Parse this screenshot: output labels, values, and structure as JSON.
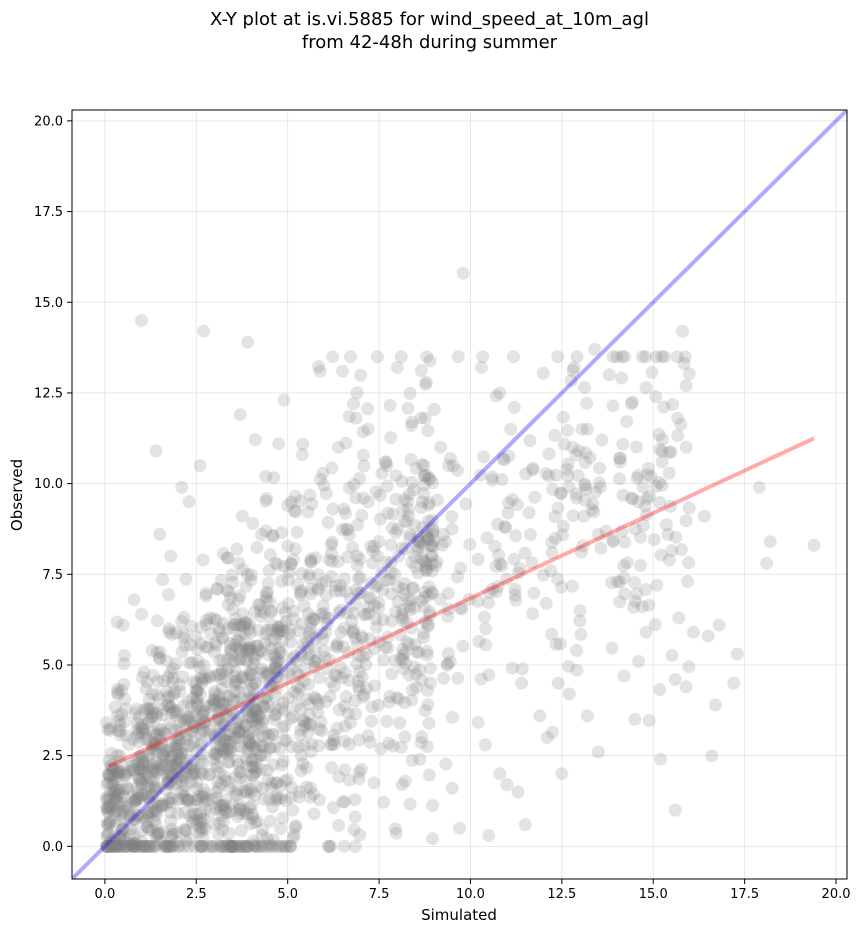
{
  "chart_data": {
    "type": "scatter",
    "title": "X-Y plot at is.vi.5885 for wind_speed_at_10m_agl\nfrom 42-48h during summer",
    "title_lines": [
      "X-Y plot at is.vi.5885 for wind_speed_at_10m_agl",
      "from 42-48h during summer"
    ],
    "xlabel": "Simulated",
    "ylabel": "Observed",
    "xlim": [
      -0.9,
      20.3
    ],
    "ylim": [
      -0.9,
      20.3
    ],
    "xticks": [
      0.0,
      2.5,
      5.0,
      7.5,
      10.0,
      12.5,
      15.0,
      17.5,
      20.0
    ],
    "yticks": [
      0.0,
      2.5,
      5.0,
      7.5,
      10.0,
      12.5,
      15.0,
      17.5,
      20.0
    ],
    "xtick_labels": [
      "0.0",
      "2.5",
      "5.0",
      "7.5",
      "10.0",
      "12.5",
      "15.0",
      "17.5",
      "20.0"
    ],
    "ytick_labels": [
      "0.0",
      "2.5",
      "5.0",
      "7.5",
      "10.0",
      "12.5",
      "15.0",
      "17.5",
      "20.0"
    ],
    "grid": true,
    "point_color": "#808080",
    "point_count_approx": 1900,
    "outlier_points": [
      [
        1.0,
        14.5
      ],
      [
        2.7,
        14.2
      ],
      [
        3.9,
        13.9
      ],
      [
        9.8,
        15.8
      ],
      [
        15.8,
        14.2
      ],
      [
        15.9,
        12.7
      ],
      [
        13.4,
        13.7
      ],
      [
        13.8,
        13.0
      ],
      [
        14.4,
        12.2
      ],
      [
        10.3,
        13.2
      ],
      [
        8.0,
        13.2
      ],
      [
        6.5,
        13.1
      ],
      [
        11.2,
        12.1
      ],
      [
        10.8,
        12.5
      ],
      [
        12.8,
        11.0
      ],
      [
        13.2,
        11.5
      ],
      [
        13.6,
        11.2
      ],
      [
        14.1,
        10.6
      ],
      [
        14.6,
        9.5
      ],
      [
        15.4,
        8.6
      ],
      [
        16.4,
        9.1
      ],
      [
        17.9,
        9.9
      ],
      [
        18.2,
        8.4
      ],
      [
        18.1,
        7.8
      ],
      [
        19.4,
        8.3
      ],
      [
        15.1,
        7.2
      ],
      [
        15.7,
        6.3
      ],
      [
        16.1,
        5.9
      ],
      [
        16.5,
        5.8
      ],
      [
        16.8,
        6.1
      ],
      [
        17.3,
        5.3
      ],
      [
        17.2,
        4.5
      ],
      [
        16.7,
        3.9
      ],
      [
        16.6,
        2.5
      ],
      [
        15.6,
        1.0
      ],
      [
        15.2,
        2.4
      ],
      [
        15.9,
        4.4
      ],
      [
        15.6,
        4.6
      ],
      [
        14.5,
        3.5
      ],
      [
        14.6,
        5.1
      ],
      [
        14.8,
        5.9
      ],
      [
        14.2,
        4.7
      ],
      [
        12.5,
        2.0
      ],
      [
        12.7,
        4.2
      ],
      [
        11.5,
        0.6
      ],
      [
        10.5,
        0.3
      ],
      [
        9.7,
        0.5
      ],
      [
        9.5,
        1.6
      ],
      [
        11.0,
        1.7
      ],
      [
        11.3,
        1.5
      ],
      [
        10.8,
        2.0
      ],
      [
        1.4,
        10.9
      ],
      [
        2.1,
        9.9
      ],
      [
        2.3,
        9.5
      ],
      [
        1.5,
        8.6
      ],
      [
        1.8,
        8.0
      ],
      [
        3.7,
        11.9
      ],
      [
        4.4,
        10.2
      ],
      [
        2.6,
        10.5
      ],
      [
        5.4,
        10.8
      ],
      [
        8.4,
        11.7
      ],
      [
        7.2,
        11.5
      ],
      [
        6.8,
        12.2
      ],
      [
        6.9,
        12.5
      ],
      [
        9.4,
        10.5
      ],
      [
        11.6,
        9.2
      ],
      [
        12.9,
        9.6
      ],
      [
        13.1,
        9.1
      ],
      [
        12.2,
        7.6
      ],
      [
        13.5,
        8.6
      ],
      [
        13.9,
        8.4
      ],
      [
        14.2,
        7.4
      ],
      [
        14.7,
        6.6
      ],
      [
        13.0,
        6.5
      ],
      [
        12.9,
        5.4
      ],
      [
        12.4,
        4.5
      ],
      [
        13.2,
        3.6
      ],
      [
        13.5,
        2.6
      ],
      [
        12.1,
        3.0
      ],
      [
        11.9,
        3.6
      ],
      [
        11.4,
        4.5
      ],
      [
        0.1,
        0.6
      ],
      [
        0.2,
        1.7
      ],
      [
        0.5,
        6.1
      ],
      [
        0.8,
        6.8
      ],
      [
        1.0,
        6.4
      ],
      [
        2.1,
        6.2
      ],
      [
        4.9,
        12.3
      ],
      [
        10.6,
        10.1
      ],
      [
        11.1,
        11.5
      ]
    ],
    "cluster_model": {
      "description": "dense cloud of semi-transparent points, densest between 0-8 simulated and 0-10 observed",
      "fit_intercept": 2.15,
      "fit_slope": 0.468
    },
    "series": [
      {
        "name": "",
        "type": "line",
        "color": "#0000ff",
        "x": [
          -0.9,
          20.3
        ],
        "y": [
          -0.9,
          20.3
        ]
      },
      {
        "name": "",
        "type": "line",
        "color": "#ff0000",
        "x": [
          0.1,
          19.4
        ],
        "y": [
          2.2,
          11.25
        ]
      }
    ]
  }
}
